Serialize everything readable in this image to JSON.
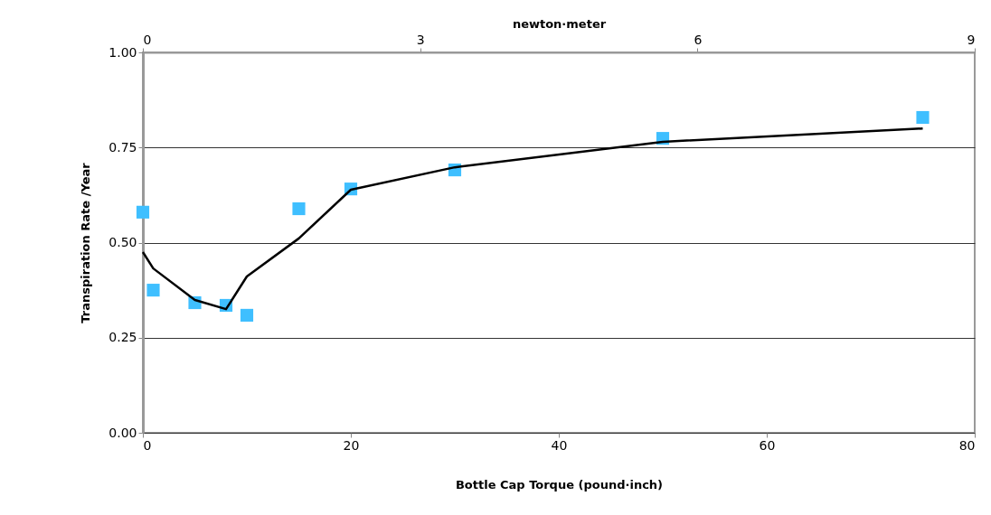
{
  "chart_data": {
    "type": "scatter",
    "xlabel": "Bottle Cap Torque (pound·inch)",
    "ylabel": "Transpiration Rate /Year",
    "x2label": "newton·meter",
    "xlim": [
      0,
      80
    ],
    "xticks": [
      0,
      20,
      40,
      60,
      80
    ],
    "ylim": [
      0,
      1
    ],
    "yticks": [
      {
        "value": 0,
        "label": "0.00"
      },
      0.25,
      {
        "value": 0.5,
        "label": "0.50"
      },
      0.75,
      {
        "value": 1,
        "label": "1.00"
      }
    ],
    "x2lim": [
      0,
      9
    ],
    "x2ticks": [
      0,
      3,
      6,
      9
    ],
    "grid": "y",
    "series": [
      {
        "type": "scatter",
        "marker": "square",
        "color": "#3fbfff",
        "x": [
          0,
          1,
          5,
          8,
          10,
          15,
          20,
          30,
          50,
          75
        ],
        "values": [
          0.58,
          0.375,
          0.342,
          0.335,
          0.309,
          0.589,
          0.641,
          0.691,
          0.774,
          0.829
        ]
      },
      {
        "type": "line",
        "marker": "none",
        "line_style": "solid",
        "color": "#000000",
        "x": [
          0,
          1,
          5,
          8,
          10,
          15,
          20,
          30,
          50,
          75
        ],
        "values": [
          0.475,
          0.432,
          0.349,
          0.325,
          0.411,
          0.511,
          0.639,
          0.698,
          0.765,
          0.8
        ]
      }
    ]
  }
}
